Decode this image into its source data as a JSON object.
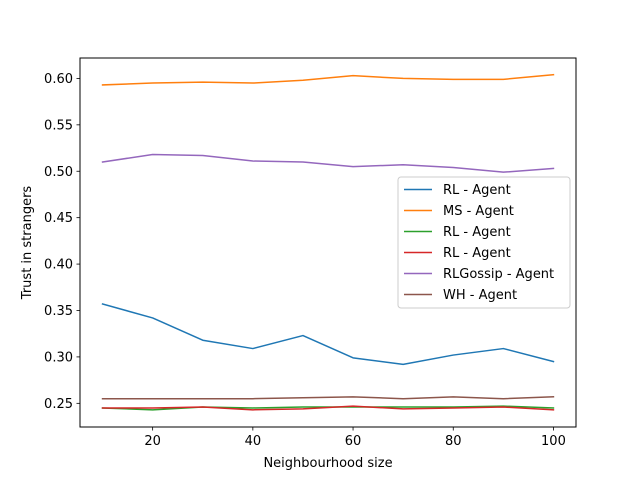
{
  "chart_data": {
    "type": "line",
    "title": "",
    "xlabel": "Neighbourhood size",
    "ylabel": "Trust in strangers",
    "xlim": [
      5.5,
      104.5
    ],
    "ylim": [
      0.2245,
      0.622
    ],
    "xticks": [
      20,
      40,
      60,
      80,
      100
    ],
    "yticks": [
      0.25,
      0.3,
      0.35,
      0.4,
      0.45,
      0.5,
      0.55,
      0.6
    ],
    "ytick_labels": [
      "0.25",
      "0.30",
      "0.35",
      "0.40",
      "0.45",
      "0.50",
      "0.55",
      "0.60"
    ],
    "grid": false,
    "legend_position": "center-right",
    "x": [
      10,
      20,
      30,
      40,
      50,
      60,
      70,
      80,
      90,
      100
    ],
    "series": [
      {
        "name": "RL - Agent",
        "color": "#1f77b4",
        "values": [
          0.357,
          0.342,
          0.318,
          0.309,
          0.323,
          0.299,
          0.292,
          0.302,
          0.309,
          0.295
        ]
      },
      {
        "name": "MS - Agent",
        "color": "#ff7f0e",
        "values": [
          0.593,
          0.595,
          0.596,
          0.595,
          0.598,
          0.603,
          0.6,
          0.599,
          0.599,
          0.604
        ]
      },
      {
        "name": "RL - Agent",
        "color": "#2ca02c",
        "values": [
          0.245,
          0.243,
          0.246,
          0.245,
          0.246,
          0.246,
          0.246,
          0.246,
          0.247,
          0.245
        ]
      },
      {
        "name": "RL - Agent",
        "color": "#d62728",
        "values": [
          0.245,
          0.245,
          0.246,
          0.243,
          0.244,
          0.247,
          0.244,
          0.245,
          0.246,
          0.243
        ]
      },
      {
        "name": "RLGossip - Agent",
        "color": "#9467bd",
        "values": [
          0.51,
          0.518,
          0.517,
          0.511,
          0.51,
          0.505,
          0.507,
          0.504,
          0.499,
          0.503
        ]
      },
      {
        "name": "WH - Agent",
        "color": "#8c564b",
        "values": [
          0.255,
          0.255,
          0.255,
          0.255,
          0.256,
          0.257,
          0.255,
          0.257,
          0.255,
          0.257
        ]
      }
    ]
  }
}
